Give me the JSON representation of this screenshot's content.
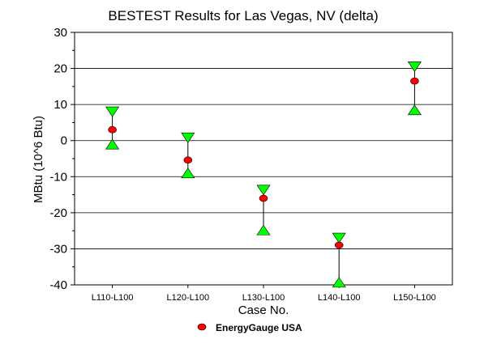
{
  "chart_data": {
    "type": "scatter",
    "title": "BESTEST Results for Las Vegas, NV (delta)",
    "xlabel": "Case No.",
    "ylabel": "MBtu (10^6 Btu)",
    "ylim": [
      -40,
      30
    ],
    "yticks": [
      30,
      20,
      10,
      0,
      -10,
      -20,
      -30,
      -40
    ],
    "yticks_display": [
      "30",
      "20",
      "10",
      "0",
      "-10",
      "-20",
      "-30",
      "-40"
    ],
    "minor_ytick_step": 5,
    "grid": "horizontal",
    "categories": [
      "L110-L100",
      "L120-L100",
      "L130-L100",
      "L140-L100",
      "L150-L100"
    ],
    "range_max": [
      8.0,
      0.8,
      -13.7,
      -27.0,
      20.5
    ],
    "range_min": [
      -1.0,
      -9.0,
      -24.8,
      -39.3,
      8.5
    ],
    "series": [
      {
        "name": "EnergyGauge USA",
        "values": [
          3.0,
          -5.4,
          -16.0,
          -29.0,
          16.5
        ]
      }
    ],
    "legend_position": "bottom-center",
    "colors": {
      "series_marker": "#ff0000",
      "range_marker": "#00ff00",
      "range_line": "#000000",
      "grid": "#000000",
      "axis": "#000000",
      "marker_outline": "#000000"
    }
  }
}
